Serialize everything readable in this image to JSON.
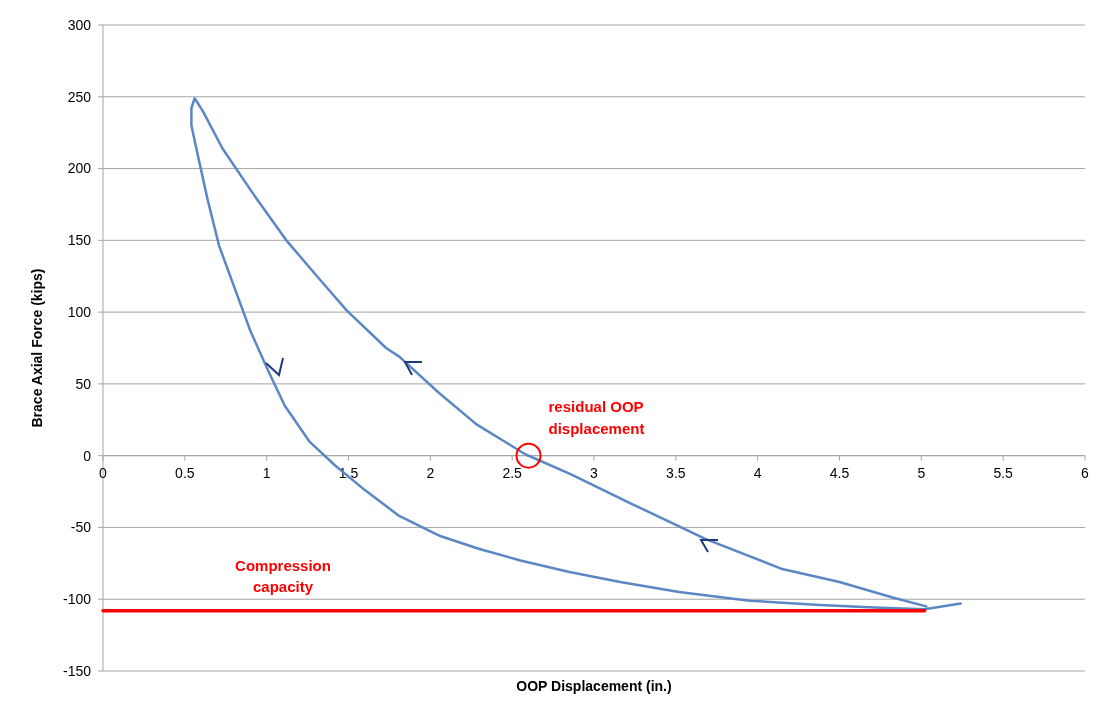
{
  "chart_data": {
    "type": "line",
    "xlabel": "OOP Displacement (in.)",
    "ylabel": "Brace Axial Force (kips)",
    "xlim": [
      0,
      6
    ],
    "xticks": [
      0,
      0.5,
      1,
      1.5,
      2,
      2.5,
      3,
      3.5,
      4,
      4.5,
      5,
      5.5,
      6
    ],
    "ylim": [
      -150,
      300
    ],
    "yticks": [
      -150,
      -100,
      -50,
      0,
      50,
      100,
      150,
      200,
      250,
      300
    ],
    "grid": "y",
    "marker": "none",
    "series": [
      {
        "color": "#5b87c5",
        "x": [
          5.03,
          4.83,
          4.5,
          4.15,
          3.68,
          3.22,
          2.86,
          2.58,
          2.28,
          2.05,
          1.81,
          1.73,
          1.49,
          1.33,
          1.12,
          0.92,
          0.73,
          0.61,
          0.56,
          0.54,
          0.54,
          0.58,
          0.64,
          0.71,
          0.81,
          0.9,
          1.01,
          1.11,
          1.26,
          1.42,
          1.6,
          1.81,
          2.06,
          2.3,
          2.55,
          2.85,
          3.16,
          3.52,
          3.95,
          4.38,
          4.75,
          5.02,
          5.24
        ],
        "values": [
          -105,
          -99,
          -88,
          -79,
          -58,
          -33,
          -13,
          1,
          22,
          44,
          69,
          75,
          101,
          122,
          150,
          182,
          214,
          240,
          249,
          242,
          230,
          209,
          178,
          146,
          115,
          87,
          59,
          35,
          10,
          -7,
          -24,
          -42,
          -56,
          -65,
          -73,
          -81,
          -88,
          -95,
          -101,
          -104,
          -106,
          -107,
          -103
        ]
      },
      {
        "color": "#ff0000",
        "x": [
          0,
          5.02
        ],
        "values": [
          -108,
          -108
        ]
      }
    ],
    "annotations": [
      {
        "text": "residual OOP displacement",
        "x": 2.6,
        "y": 0
      },
      {
        "text": "Compression capacity",
        "x": 1.1,
        "y": -108
      }
    ]
  }
}
